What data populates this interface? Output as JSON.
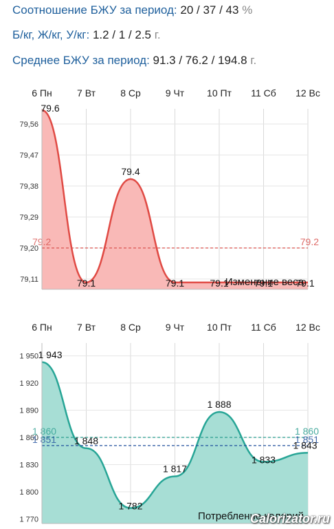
{
  "stats": [
    {
      "label": "Соотношение БЖУ за период:",
      "value": "20 / 37 / 43",
      "unit": "%"
    },
    {
      "label": "Б/кг, Ж/кг, У/кг:",
      "value": "1.2 / 1 / 2.5",
      "unit": "г."
    },
    {
      "label": "Среднее БЖУ за период:",
      "value": "91.3 / 76.2 / 194.8",
      "unit": "г."
    }
  ],
  "watermark": "Calorizator.ru",
  "chart_data": [
    {
      "type": "area",
      "title": "Изменение веса",
      "categories": [
        "6 Пн",
        "7 Вт",
        "8 Ср",
        "9 Чт",
        "10 Пт",
        "11 Сб",
        "12 Вс"
      ],
      "values": [
        79.6,
        79.1,
        79.4,
        79.1,
        79.1,
        79.1,
        79.1
      ],
      "value_labels": [
        "79.6",
        "79.1",
        "79.4",
        "79.1",
        "79.1",
        "79.1",
        "79.1"
      ],
      "y_ticks": [
        "79,56",
        "79,47",
        "79,38",
        "79,29",
        "79,20",
        "79,11"
      ],
      "ylim": [
        79.08,
        79.58
      ],
      "average": {
        "value": 79.2,
        "label": "79.2",
        "color": "#d9534f"
      },
      "line_color": "#e04a44",
      "fill_color": "#f9b9b7",
      "grid": true
    },
    {
      "type": "area",
      "title": "Потребление калорий",
      "categories": [
        "6 Пн",
        "7 Вт",
        "8 Ср",
        "9 Чт",
        "10 Пт",
        "11 Сб",
        "12 Вс"
      ],
      "values": [
        1943,
        1848,
        1782,
        1817,
        1888,
        1833,
        1843
      ],
      "value_labels": [
        "1 943",
        "1 848",
        "1 782",
        "1 817",
        "1 888",
        "1 833",
        "1 843"
      ],
      "y_ticks": [
        "1 950",
        "1 920",
        "1 890",
        "1 860",
        "1 830",
        "1 800",
        "1 770"
      ],
      "ylim": [
        1765,
        1955
      ],
      "averages": [
        {
          "value": 1860,
          "label": "1 860",
          "color": "#2a9d8f"
        },
        {
          "value": 1851,
          "label": "1 851",
          "color": "#1f4e9c"
        }
      ],
      "line_color": "#27a596",
      "fill_color": "#a7ded5",
      "grid": true
    }
  ]
}
